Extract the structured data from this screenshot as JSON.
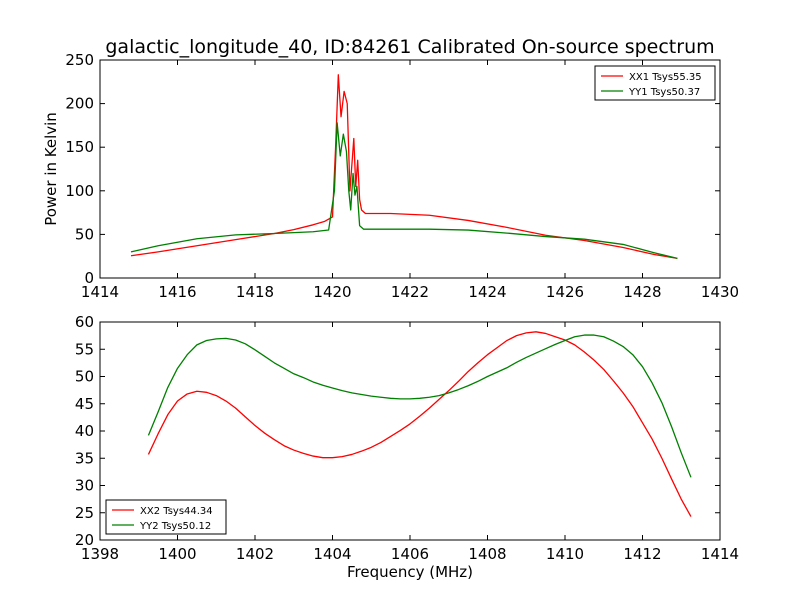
{
  "figure": {
    "title": "galactic_longitude_40, ID:84261 Calibrated On-source spectrum",
    "ylabel_top": "Power in Kelvin",
    "xlabel_bottom": "Frequency (MHz)"
  },
  "chart_data": [
    {
      "type": "line",
      "title": "galactic_longitude_40, ID:84261 Calibrated On-source spectrum",
      "xlabel": "",
      "ylabel": "Power in Kelvin",
      "xlim": [
        1414,
        1430
      ],
      "ylim": [
        0,
        250
      ],
      "xticks": [
        1414,
        1416,
        1418,
        1420,
        1422,
        1424,
        1426,
        1428,
        1430
      ],
      "yticks": [
        0,
        50,
        100,
        150,
        200,
        250
      ],
      "grid": false,
      "legend_position": "top-right",
      "series": [
        {
          "name": "XX1 Tsys55.35",
          "color": "#ff0000",
          "points": [
            [
              1414.8,
              25.5
            ],
            [
              1415.5,
              30
            ],
            [
              1416.5,
              37
            ],
            [
              1417.5,
              44
            ],
            [
              1418.5,
              51
            ],
            [
              1419.0,
              55.5
            ],
            [
              1419.5,
              61
            ],
            [
              1419.8,
              65
            ],
            [
              1420.0,
              70
            ],
            [
              1420.08,
              150
            ],
            [
              1420.15,
              233
            ],
            [
              1420.22,
              185
            ],
            [
              1420.3,
              214
            ],
            [
              1420.38,
              200
            ],
            [
              1420.45,
              100
            ],
            [
              1420.5,
              130
            ],
            [
              1420.55,
              160
            ],
            [
              1420.6,
              105
            ],
            [
              1420.65,
              135
            ],
            [
              1420.7,
              90
            ],
            [
              1420.75,
              78
            ],
            [
              1420.85,
              74
            ],
            [
              1421.5,
              74
            ],
            [
              1422.5,
              72
            ],
            [
              1423.5,
              66
            ],
            [
              1424.5,
              58
            ],
            [
              1425.5,
              49
            ],
            [
              1426.5,
              43
            ],
            [
              1427.5,
              35
            ],
            [
              1428.3,
              27
            ],
            [
              1428.9,
              22.5
            ]
          ]
        },
        {
          "name": "YY1 Tsys50.37",
          "color": "#008000",
          "points": [
            [
              1414.8,
              30
            ],
            [
              1415.5,
              37
            ],
            [
              1416.5,
              45
            ],
            [
              1417.5,
              49.5
            ],
            [
              1418.5,
              51
            ],
            [
              1419.5,
              53
            ],
            [
              1419.9,
              55
            ],
            [
              1420.05,
              100
            ],
            [
              1420.12,
              178
            ],
            [
              1420.2,
              140
            ],
            [
              1420.28,
              165
            ],
            [
              1420.36,
              145
            ],
            [
              1420.42,
              100
            ],
            [
              1420.47,
              78
            ],
            [
              1420.53,
              120
            ],
            [
              1420.58,
              95
            ],
            [
              1420.63,
              105
            ],
            [
              1420.7,
              60
            ],
            [
              1420.8,
              56
            ],
            [
              1421.5,
              56
            ],
            [
              1422.5,
              56
            ],
            [
              1423.5,
              55
            ],
            [
              1424.5,
              51.5
            ],
            [
              1425.5,
              47.5
            ],
            [
              1426.5,
              44.5
            ],
            [
              1427.5,
              38.5
            ],
            [
              1428.3,
              29
            ],
            [
              1428.9,
              22.5
            ]
          ]
        }
      ]
    },
    {
      "type": "line",
      "title": "",
      "xlabel": "Frequency (MHz)",
      "ylabel": "",
      "xlim": [
        1398,
        1414
      ],
      "ylim": [
        20,
        60
      ],
      "xticks": [
        1398,
        1400,
        1402,
        1404,
        1406,
        1408,
        1410,
        1412,
        1414
      ],
      "yticks": [
        20,
        25,
        30,
        35,
        40,
        45,
        50,
        55,
        60
      ],
      "grid": false,
      "legend_position": "bottom-left",
      "series": [
        {
          "name": "XX2 Tsys44.34",
          "color": "#ff0000",
          "points": [
            [
              1399.25,
              35.7
            ],
            [
              1399.5,
              39.5
            ],
            [
              1399.75,
              43
            ],
            [
              1400.0,
              45.5
            ],
            [
              1400.25,
              46.8
            ],
            [
              1400.5,
              47.3
            ],
            [
              1400.75,
              47.1
            ],
            [
              1401.0,
              46.5
            ],
            [
              1401.25,
              45.5
            ],
            [
              1401.5,
              44.2
            ],
            [
              1401.75,
              42.6
            ],
            [
              1402.0,
              41
            ],
            [
              1402.25,
              39.6
            ],
            [
              1402.5,
              38.4
            ],
            [
              1402.75,
              37.3
            ],
            [
              1403.0,
              36.5
            ],
            [
              1403.25,
              35.9
            ],
            [
              1403.5,
              35.4
            ],
            [
              1403.75,
              35.1
            ],
            [
              1404.0,
              35.1
            ],
            [
              1404.25,
              35.3
            ],
            [
              1404.5,
              35.7
            ],
            [
              1404.75,
              36.3
            ],
            [
              1405.0,
              37
            ],
            [
              1405.25,
              37.9
            ],
            [
              1405.5,
              39
            ],
            [
              1405.75,
              40.1
            ],
            [
              1406.0,
              41.3
            ],
            [
              1406.25,
              42.7
            ],
            [
              1406.5,
              44.2
            ],
            [
              1406.75,
              45.8
            ],
            [
              1407.0,
              47.4
            ],
            [
              1407.25,
              49.1
            ],
            [
              1407.5,
              50.9
            ],
            [
              1407.75,
              52.5
            ],
            [
              1408.0,
              54
            ],
            [
              1408.25,
              55.3
            ],
            [
              1408.5,
              56.6
            ],
            [
              1408.75,
              57.5
            ],
            [
              1409.0,
              58
            ],
            [
              1409.25,
              58.2
            ],
            [
              1409.5,
              57.9
            ],
            [
              1409.75,
              57.3
            ],
            [
              1410.0,
              56.7
            ],
            [
              1410.25,
              55.8
            ],
            [
              1410.5,
              54.5
            ],
            [
              1410.75,
              53
            ],
            [
              1411.0,
              51.3
            ],
            [
              1411.25,
              49.2
            ],
            [
              1411.5,
              47
            ],
            [
              1411.75,
              44.5
            ],
            [
              1412.0,
              41.5
            ],
            [
              1412.25,
              38.5
            ],
            [
              1412.5,
              35
            ],
            [
              1412.75,
              31.2
            ],
            [
              1413.0,
              27.5
            ],
            [
              1413.25,
              24.3
            ]
          ]
        },
        {
          "name": "YY2 Tsys50.12",
          "color": "#008000",
          "points": [
            [
              1399.25,
              39.2
            ],
            [
              1399.5,
              43.5
            ],
            [
              1399.75,
              48
            ],
            [
              1400.0,
              51.5
            ],
            [
              1400.25,
              54
            ],
            [
              1400.5,
              55.8
            ],
            [
              1400.75,
              56.6
            ],
            [
              1401.0,
              56.9
            ],
            [
              1401.25,
              57
            ],
            [
              1401.5,
              56.7
            ],
            [
              1401.75,
              56
            ],
            [
              1402.0,
              54.9
            ],
            [
              1402.25,
              53.7
            ],
            [
              1402.5,
              52.5
            ],
            [
              1402.75,
              51.5
            ],
            [
              1403.0,
              50.5
            ],
            [
              1403.25,
              49.8
            ],
            [
              1403.5,
              49
            ],
            [
              1403.75,
              48.4
            ],
            [
              1404.0,
              47.9
            ],
            [
              1404.25,
              47.4
            ],
            [
              1404.5,
              47
            ],
            [
              1404.75,
              46.7
            ],
            [
              1405.0,
              46.4
            ],
            [
              1405.25,
              46.2
            ],
            [
              1405.5,
              46
            ],
            [
              1405.75,
              45.9
            ],
            [
              1406.0,
              45.9
            ],
            [
              1406.25,
              46
            ],
            [
              1406.5,
              46.2
            ],
            [
              1406.75,
              46.5
            ],
            [
              1407.0,
              47
            ],
            [
              1407.25,
              47.6
            ],
            [
              1407.5,
              48.3
            ],
            [
              1407.75,
              49.1
            ],
            [
              1408.0,
              50
            ],
            [
              1408.25,
              50.8
            ],
            [
              1408.5,
              51.6
            ],
            [
              1408.75,
              52.6
            ],
            [
              1409.0,
              53.5
            ],
            [
              1409.25,
              54.3
            ],
            [
              1409.5,
              55.1
            ],
            [
              1409.75,
              55.9
            ],
            [
              1410.0,
              56.6
            ],
            [
              1410.25,
              57.3
            ],
            [
              1410.5,
              57.6
            ],
            [
              1410.75,
              57.6
            ],
            [
              1411.0,
              57.3
            ],
            [
              1411.25,
              56.5
            ],
            [
              1411.5,
              55.5
            ],
            [
              1411.75,
              54
            ],
            [
              1412.0,
              51.8
            ],
            [
              1412.25,
              48.8
            ],
            [
              1412.5,
              45.2
            ],
            [
              1412.75,
              40.8
            ],
            [
              1413.0,
              36
            ],
            [
              1413.25,
              31.5
            ]
          ]
        }
      ]
    }
  ]
}
